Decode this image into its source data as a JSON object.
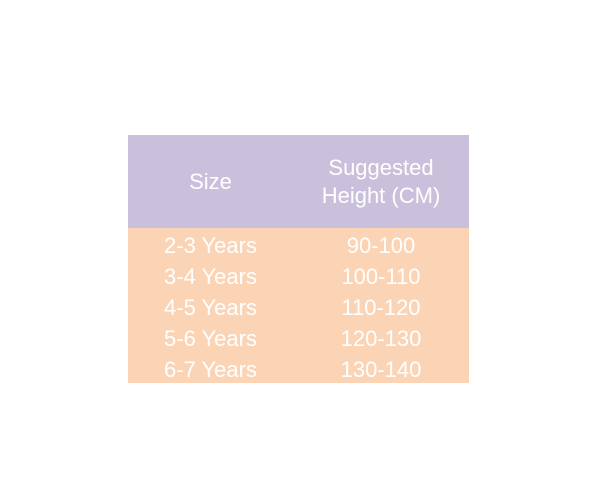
{
  "colors": {
    "header_bg": "#cbc0dc",
    "body_bg": "#fbd4b6",
    "text": "#ffffff"
  },
  "table": {
    "headers": [
      "Size",
      "Suggested Height (CM)"
    ],
    "header_lines": [
      "Suggested",
      "Height (CM)"
    ],
    "rows": [
      [
        "2-3 Years",
        "90-100"
      ],
      [
        "3-4 Years",
        "100-110"
      ],
      [
        "4-5 Years",
        "110-120"
      ],
      [
        "5-6 Years",
        "120-130"
      ],
      [
        "6-7 Years",
        "130-140"
      ]
    ]
  }
}
